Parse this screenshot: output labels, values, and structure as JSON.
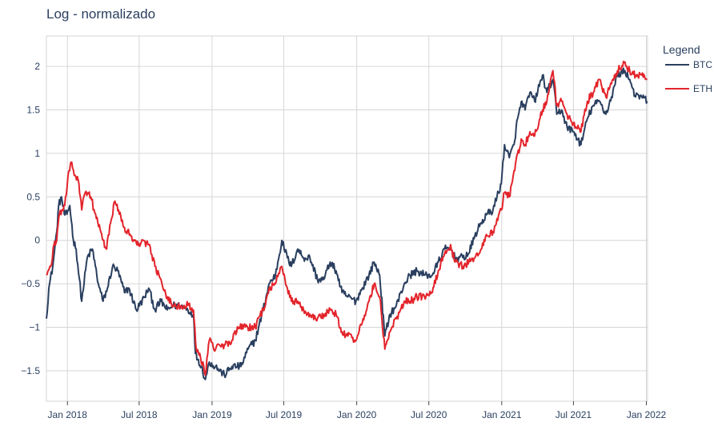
{
  "chart_data": {
    "type": "line",
    "title": "Log - normalizado",
    "xlabel": "",
    "ylabel": "",
    "grid": true,
    "legend": {
      "title": "Legend",
      "placement": "right"
    },
    "x_range": [
      "2017-11-09",
      "2022-01-04"
    ],
    "y_range": [
      -1.85,
      2.35
    ],
    "x_ticks": [
      {
        "date": "2018-01-01",
        "label": "Jan 2018"
      },
      {
        "date": "2018-07-01",
        "label": "Jul 2018"
      },
      {
        "date": "2019-01-01",
        "label": "Jan 2019"
      },
      {
        "date": "2019-07-01",
        "label": "Jul 2019"
      },
      {
        "date": "2020-01-01",
        "label": "Jan 2020"
      },
      {
        "date": "2020-07-01",
        "label": "Jul 2020"
      },
      {
        "date": "2021-01-01",
        "label": "Jan 2021"
      },
      {
        "date": "2021-07-01",
        "label": "Jul 2021"
      },
      {
        "date": "2022-01-01",
        "label": "Jan 2022"
      }
    ],
    "y_ticks": [
      {
        "value": -1.5,
        "label": "−1.5"
      },
      {
        "value": -1,
        "label": "−1"
      },
      {
        "value": -0.5,
        "label": "−0.5"
      },
      {
        "value": 0,
        "label": "0"
      },
      {
        "value": 0.5,
        "label": "0.5"
      },
      {
        "value": 1,
        "label": "1"
      },
      {
        "value": 1.5,
        "label": "1.5"
      },
      {
        "value": 2,
        "label": "2"
      }
    ],
    "series": [
      {
        "name": "BTC",
        "color": "#2a3f5f",
        "points": [
          [
            "2017-11-09",
            -0.9
          ],
          [
            "2017-11-15",
            -0.55
          ],
          [
            "2017-11-25",
            -0.3
          ],
          [
            "2017-12-05",
            0.1
          ],
          [
            "2017-12-10",
            0.4
          ],
          [
            "2017-12-17",
            0.5
          ],
          [
            "2017-12-24",
            0.3
          ],
          [
            "2017-12-31",
            0.3
          ],
          [
            "2018-01-07",
            0.4
          ],
          [
            "2018-01-16",
            0.0
          ],
          [
            "2018-01-23",
            -0.1
          ],
          [
            "2018-02-06",
            -0.7
          ],
          [
            "2018-02-20",
            -0.2
          ],
          [
            "2018-03-05",
            -0.1
          ],
          [
            "2018-03-20",
            -0.5
          ],
          [
            "2018-04-01",
            -0.7
          ],
          [
            "2018-04-12",
            -0.55
          ],
          [
            "2018-04-25",
            -0.3
          ],
          [
            "2018-05-08",
            -0.35
          ],
          [
            "2018-05-25",
            -0.6
          ],
          [
            "2018-06-05",
            -0.55
          ],
          [
            "2018-06-24",
            -0.8
          ],
          [
            "2018-07-15",
            -0.65
          ],
          [
            "2018-07-25",
            -0.55
          ],
          [
            "2018-08-10",
            -0.8
          ],
          [
            "2018-08-25",
            -0.7
          ],
          [
            "2018-09-10",
            -0.8
          ],
          [
            "2018-09-25",
            -0.75
          ],
          [
            "2018-10-15",
            -0.75
          ],
          [
            "2018-11-01",
            -0.8
          ],
          [
            "2018-11-15",
            -0.85
          ],
          [
            "2018-11-20",
            -1.3
          ],
          [
            "2018-12-05",
            -1.45
          ],
          [
            "2018-12-15",
            -1.6
          ],
          [
            "2018-12-25",
            -1.4
          ],
          [
            "2019-01-10",
            -1.45
          ],
          [
            "2019-02-01",
            -1.55
          ],
          [
            "2019-02-20",
            -1.45
          ],
          [
            "2019-03-15",
            -1.45
          ],
          [
            "2019-04-02",
            -1.25
          ],
          [
            "2019-04-20",
            -1.15
          ],
          [
            "2019-05-10",
            -0.8
          ],
          [
            "2019-05-25",
            -0.5
          ],
          [
            "2019-06-10",
            -0.4
          ],
          [
            "2019-06-26",
            0.0
          ],
          [
            "2019-07-10",
            -0.2
          ],
          [
            "2019-07-20",
            -0.3
          ],
          [
            "2019-08-05",
            -0.1
          ],
          [
            "2019-08-20",
            -0.2
          ],
          [
            "2019-09-05",
            -0.2
          ],
          [
            "2019-09-24",
            -0.45
          ],
          [
            "2019-10-10",
            -0.45
          ],
          [
            "2019-10-26",
            -0.25
          ],
          [
            "2019-11-10",
            -0.35
          ],
          [
            "2019-11-25",
            -0.6
          ],
          [
            "2019-12-10",
            -0.65
          ],
          [
            "2019-12-30",
            -0.7
          ],
          [
            "2020-01-15",
            -0.55
          ],
          [
            "2020-02-01",
            -0.4
          ],
          [
            "2020-02-14",
            -0.25
          ],
          [
            "2020-02-28",
            -0.4
          ],
          [
            "2020-03-12",
            -1.1
          ],
          [
            "2020-03-25",
            -0.85
          ],
          [
            "2020-04-10",
            -0.75
          ],
          [
            "2020-04-30",
            -0.5
          ],
          [
            "2020-05-15",
            -0.4
          ],
          [
            "2020-06-01",
            -0.35
          ],
          [
            "2020-06-20",
            -0.4
          ],
          [
            "2020-07-10",
            -0.4
          ],
          [
            "2020-07-25",
            -0.25
          ],
          [
            "2020-08-10",
            -0.1
          ],
          [
            "2020-08-25",
            -0.1
          ],
          [
            "2020-09-05",
            -0.2
          ],
          [
            "2020-09-25",
            -0.2
          ],
          [
            "2020-10-10",
            -0.15
          ],
          [
            "2020-10-25",
            0.05
          ],
          [
            "2020-11-10",
            0.2
          ],
          [
            "2020-11-25",
            0.3
          ],
          [
            "2020-12-10",
            0.35
          ],
          [
            "2020-12-20",
            0.5
          ],
          [
            "2020-12-31",
            0.65
          ],
          [
            "2021-01-08",
            1.1
          ],
          [
            "2021-01-20",
            0.95
          ],
          [
            "2021-02-01",
            1.1
          ],
          [
            "2021-02-10",
            1.4
          ],
          [
            "2021-02-21",
            1.6
          ],
          [
            "2021-03-01",
            1.5
          ],
          [
            "2021-03-13",
            1.7
          ],
          [
            "2021-03-25",
            1.6
          ],
          [
            "2021-04-14",
            1.9
          ],
          [
            "2021-04-25",
            1.7
          ],
          [
            "2021-05-10",
            1.85
          ],
          [
            "2021-05-20",
            1.45
          ],
          [
            "2021-06-01",
            1.5
          ],
          [
            "2021-06-15",
            1.3
          ],
          [
            "2021-07-01",
            1.25
          ],
          [
            "2021-07-20",
            1.1
          ],
          [
            "2021-08-05",
            1.4
          ],
          [
            "2021-08-20",
            1.55
          ],
          [
            "2021-09-05",
            1.6
          ],
          [
            "2021-09-21",
            1.45
          ],
          [
            "2021-10-05",
            1.65
          ],
          [
            "2021-10-20",
            1.9
          ],
          [
            "2021-11-08",
            1.95
          ],
          [
            "2021-11-20",
            1.85
          ],
          [
            "2021-12-05",
            1.65
          ],
          [
            "2021-12-20",
            1.65
          ],
          [
            "2022-01-03",
            1.6
          ]
        ]
      },
      {
        "name": "ETH",
        "color": "#e3242b",
        "points": [
          [
            "2017-11-09",
            -0.4
          ],
          [
            "2017-11-20",
            -0.3
          ],
          [
            "2017-11-28",
            -0.05
          ],
          [
            "2017-12-05",
            0.0
          ],
          [
            "2017-12-12",
            0.3
          ],
          [
            "2017-12-18",
            0.35
          ],
          [
            "2017-12-25",
            0.4
          ],
          [
            "2017-12-31",
            0.6
          ],
          [
            "2018-01-05",
            0.8
          ],
          [
            "2018-01-10",
            0.9
          ],
          [
            "2018-01-20",
            0.75
          ],
          [
            "2018-01-30",
            0.65
          ],
          [
            "2018-02-06",
            0.35
          ],
          [
            "2018-02-15",
            0.55
          ],
          [
            "2018-03-01",
            0.5
          ],
          [
            "2018-03-15",
            0.25
          ],
          [
            "2018-04-01",
            0.0
          ],
          [
            "2018-04-10",
            -0.1
          ],
          [
            "2018-04-20",
            0.2
          ],
          [
            "2018-05-01",
            0.45
          ],
          [
            "2018-05-10",
            0.35
          ],
          [
            "2018-05-25",
            0.15
          ],
          [
            "2018-06-10",
            0.05
          ],
          [
            "2018-06-25",
            -0.05
          ],
          [
            "2018-07-10",
            0.0
          ],
          [
            "2018-07-25",
            -0.05
          ],
          [
            "2018-08-10",
            -0.3
          ],
          [
            "2018-08-25",
            -0.45
          ],
          [
            "2018-09-10",
            -0.65
          ],
          [
            "2018-09-25",
            -0.75
          ],
          [
            "2018-10-15",
            -0.75
          ],
          [
            "2018-11-01",
            -0.75
          ],
          [
            "2018-11-15",
            -0.8
          ],
          [
            "2018-11-22",
            -1.25
          ],
          [
            "2018-12-01",
            -1.3
          ],
          [
            "2018-12-15",
            -1.55
          ],
          [
            "2018-12-25",
            -1.15
          ],
          [
            "2019-01-10",
            -1.25
          ],
          [
            "2019-02-01",
            -1.2
          ],
          [
            "2019-02-20",
            -1.15
          ],
          [
            "2019-03-10",
            -1.0
          ],
          [
            "2019-04-01",
            -1.0
          ],
          [
            "2019-04-20",
            -1.0
          ],
          [
            "2019-05-10",
            -0.8
          ],
          [
            "2019-05-25",
            -0.55
          ],
          [
            "2019-06-10",
            -0.5
          ],
          [
            "2019-06-26",
            -0.3
          ],
          [
            "2019-07-10",
            -0.55
          ],
          [
            "2019-07-20",
            -0.7
          ],
          [
            "2019-08-05",
            -0.7
          ],
          [
            "2019-08-20",
            -0.8
          ],
          [
            "2019-09-05",
            -0.85
          ],
          [
            "2019-09-24",
            -0.9
          ],
          [
            "2019-10-10",
            -0.85
          ],
          [
            "2019-10-26",
            -0.8
          ],
          [
            "2019-11-10",
            -0.85
          ],
          [
            "2019-11-25",
            -1.05
          ],
          [
            "2019-12-10",
            -1.1
          ],
          [
            "2019-12-30",
            -1.15
          ],
          [
            "2020-01-15",
            -0.95
          ],
          [
            "2020-02-01",
            -0.7
          ],
          [
            "2020-02-14",
            -0.5
          ],
          [
            "2020-02-28",
            -0.65
          ],
          [
            "2020-03-12",
            -1.25
          ],
          [
            "2020-03-25",
            -1.05
          ],
          [
            "2020-04-10",
            -0.9
          ],
          [
            "2020-04-30",
            -0.7
          ],
          [
            "2020-05-15",
            -0.7
          ],
          [
            "2020-06-01",
            -0.65
          ],
          [
            "2020-06-20",
            -0.65
          ],
          [
            "2020-07-10",
            -0.6
          ],
          [
            "2020-07-25",
            -0.35
          ],
          [
            "2020-08-10",
            -0.15
          ],
          [
            "2020-08-25",
            -0.05
          ],
          [
            "2020-09-05",
            -0.25
          ],
          [
            "2020-09-25",
            -0.3
          ],
          [
            "2020-10-10",
            -0.25
          ],
          [
            "2020-10-25",
            -0.2
          ],
          [
            "2020-11-10",
            -0.1
          ],
          [
            "2020-11-25",
            0.05
          ],
          [
            "2020-12-10",
            0.1
          ],
          [
            "2020-12-20",
            0.25
          ],
          [
            "2020-12-31",
            0.35
          ],
          [
            "2021-01-08",
            0.55
          ],
          [
            "2021-01-20",
            0.5
          ],
          [
            "2021-02-01",
            0.8
          ],
          [
            "2021-02-10",
            1.0
          ],
          [
            "2021-02-21",
            1.15
          ],
          [
            "2021-03-01",
            1.1
          ],
          [
            "2021-03-13",
            1.25
          ],
          [
            "2021-03-25",
            1.2
          ],
          [
            "2021-04-14",
            1.5
          ],
          [
            "2021-04-25",
            1.6
          ],
          [
            "2021-05-10",
            1.95
          ],
          [
            "2021-05-20",
            1.55
          ],
          [
            "2021-06-01",
            1.6
          ],
          [
            "2021-06-15",
            1.45
          ],
          [
            "2021-07-01",
            1.35
          ],
          [
            "2021-07-20",
            1.25
          ],
          [
            "2021-08-05",
            1.6
          ],
          [
            "2021-08-20",
            1.7
          ],
          [
            "2021-09-05",
            1.85
          ],
          [
            "2021-09-21",
            1.65
          ],
          [
            "2021-10-05",
            1.8
          ],
          [
            "2021-10-20",
            1.95
          ],
          [
            "2021-11-08",
            2.05
          ],
          [
            "2021-11-20",
            1.95
          ],
          [
            "2021-12-05",
            1.9
          ],
          [
            "2021-12-20",
            1.9
          ],
          [
            "2022-01-03",
            1.85
          ]
        ]
      }
    ]
  }
}
